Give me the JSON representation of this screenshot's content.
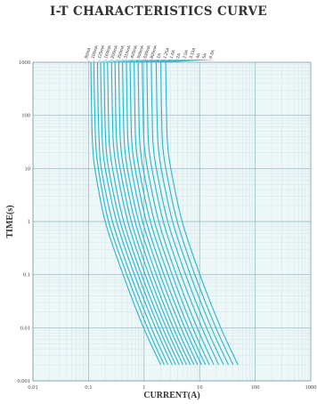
{
  "title": "I-T CHARACTERISTICS CURVE",
  "colors": {
    "curve": "#27b6c8",
    "plot_background": "#eef7f8",
    "major_grid": "#8fb3bb",
    "minor_grid": "#c6dde2",
    "frame": "#7b9aa3",
    "text": "#333333"
  },
  "chart_data": {
    "type": "line",
    "title": "I-T CHARACTERISTICS CURVE",
    "xlabel": "CURRENT(A)",
    "ylabel": "TIME(s)",
    "xscale": "log",
    "yscale": "log",
    "xlim": [
      0.01,
      1000
    ],
    "ylim": [
      0.001,
      1000
    ],
    "grid": true,
    "x_tick_labels": [
      "0.01",
      "0.1",
      "1",
      "10",
      "100",
      "1000"
    ],
    "y_tick_labels": [
      "0.001",
      "0.01",
      "0.1",
      "1",
      "10",
      "100",
      "1000"
    ],
    "series": [
      {
        "name": "80mA",
        "points": [
          [
            0.11,
            1000
          ],
          [
            0.112,
            300
          ],
          [
            0.114,
            100
          ],
          [
            0.118,
            30
          ],
          [
            0.13,
            10
          ],
          [
            0.2,
            1
          ],
          [
            0.42,
            0.1
          ],
          [
            0.98,
            0.01
          ],
          [
            2.0,
            0.002
          ]
        ]
      },
      {
        "name": "100mA",
        "points": [
          [
            0.125,
            1000
          ],
          [
            0.127,
            300
          ],
          [
            0.13,
            100
          ],
          [
            0.135,
            30
          ],
          [
            0.15,
            10
          ],
          [
            0.23,
            1
          ],
          [
            0.49,
            0.1
          ],
          [
            1.15,
            0.01
          ],
          [
            2.3,
            0.002
          ]
        ]
      },
      {
        "name": "125mA",
        "points": [
          [
            0.145,
            1000
          ],
          [
            0.147,
            300
          ],
          [
            0.15,
            100
          ],
          [
            0.156,
            30
          ],
          [
            0.17,
            10
          ],
          [
            0.27,
            1
          ],
          [
            0.57,
            0.1
          ],
          [
            1.35,
            0.01
          ],
          [
            2.7,
            0.002
          ]
        ]
      },
      {
        "name": "160mA",
        "points": [
          [
            0.165,
            1000
          ],
          [
            0.168,
            300
          ],
          [
            0.172,
            100
          ],
          [
            0.178,
            30
          ],
          [
            0.2,
            10
          ],
          [
            0.32,
            1
          ],
          [
            0.67,
            0.1
          ],
          [
            1.6,
            0.01
          ],
          [
            3.2,
            0.002
          ]
        ]
      },
      {
        "name": "200mA",
        "points": [
          [
            0.19,
            1000
          ],
          [
            0.193,
            300
          ],
          [
            0.197,
            100
          ],
          [
            0.205,
            30
          ],
          [
            0.23,
            10
          ],
          [
            0.37,
            1
          ],
          [
            0.78,
            0.1
          ],
          [
            1.85,
            0.01
          ],
          [
            3.7,
            0.002
          ]
        ]
      },
      {
        "name": "250mA",
        "points": [
          [
            0.22,
            1000
          ],
          [
            0.224,
            300
          ],
          [
            0.228,
            100
          ],
          [
            0.237,
            30
          ],
          [
            0.27,
            10
          ],
          [
            0.43,
            1
          ],
          [
            0.9,
            0.1
          ],
          [
            2.15,
            0.01
          ],
          [
            4.3,
            0.002
          ]
        ]
      },
      {
        "name": "315mA",
        "points": [
          [
            0.26,
            1000
          ],
          [
            0.264,
            300
          ],
          [
            0.27,
            100
          ],
          [
            0.28,
            30
          ],
          [
            0.32,
            10
          ],
          [
            0.51,
            1
          ],
          [
            1.05,
            0.1
          ],
          [
            2.5,
            0.01
          ],
          [
            5.0,
            0.002
          ]
        ]
      },
      {
        "name": "400mA",
        "points": [
          [
            0.3,
            1000
          ],
          [
            0.305,
            300
          ],
          [
            0.31,
            100
          ],
          [
            0.323,
            30
          ],
          [
            0.37,
            10
          ],
          [
            0.59,
            1
          ],
          [
            1.22,
            0.1
          ],
          [
            2.9,
            0.01
          ],
          [
            5.8,
            0.002
          ]
        ]
      },
      {
        "name": "500mA",
        "points": [
          [
            0.35,
            1000
          ],
          [
            0.356,
            300
          ],
          [
            0.363,
            100
          ],
          [
            0.377,
            30
          ],
          [
            0.43,
            10
          ],
          [
            0.69,
            1
          ],
          [
            1.42,
            0.1
          ],
          [
            3.35,
            0.01
          ],
          [
            6.8,
            0.002
          ]
        ]
      },
      {
        "name": "630mA",
        "points": [
          [
            0.41,
            1000
          ],
          [
            0.417,
            300
          ],
          [
            0.425,
            100
          ],
          [
            0.442,
            30
          ],
          [
            0.5,
            10
          ],
          [
            0.8,
            1
          ],
          [
            1.66,
            0.1
          ],
          [
            3.9,
            0.01
          ],
          [
            7.9,
            0.002
          ]
        ]
      },
      {
        "name": "800mA",
        "points": [
          [
            0.48,
            1000
          ],
          [
            0.488,
            300
          ],
          [
            0.497,
            100
          ],
          [
            0.517,
            30
          ],
          [
            0.59,
            10
          ],
          [
            0.94,
            1
          ],
          [
            1.95,
            0.1
          ],
          [
            4.6,
            0.01
          ],
          [
            9.2,
            0.002
          ]
        ]
      },
      {
        "name": "1A",
        "points": [
          [
            0.56,
            1000
          ],
          [
            0.57,
            300
          ],
          [
            0.58,
            100
          ],
          [
            0.603,
            30
          ],
          [
            0.69,
            10
          ],
          [
            1.1,
            1
          ],
          [
            2.28,
            0.1
          ],
          [
            5.4,
            0.01
          ],
          [
            10.8,
            0.002
          ]
        ]
      },
      {
        "name": "1.25A",
        "points": [
          [
            0.66,
            1000
          ],
          [
            0.672,
            300
          ],
          [
            0.684,
            100
          ],
          [
            0.71,
            30
          ],
          [
            0.81,
            10
          ],
          [
            1.3,
            1
          ],
          [
            2.7,
            0.1
          ],
          [
            6.3,
            0.01
          ],
          [
            12.7,
            0.002
          ]
        ]
      },
      {
        "name": "1.6A",
        "points": [
          [
            0.78,
            1000
          ],
          [
            0.794,
            300
          ],
          [
            0.808,
            100
          ],
          [
            0.84,
            30
          ],
          [
            0.96,
            10
          ],
          [
            1.54,
            1
          ],
          [
            3.2,
            0.1
          ],
          [
            7.5,
            0.01
          ],
          [
            15.0,
            0.002
          ]
        ]
      },
      {
        "name": "2A",
        "points": [
          [
            0.93,
            1000
          ],
          [
            0.946,
            300
          ],
          [
            0.963,
            100
          ],
          [
            1.0,
            30
          ],
          [
            1.15,
            10
          ],
          [
            1.84,
            1
          ],
          [
            3.8,
            0.1
          ],
          [
            9.0,
            0.01
          ],
          [
            18.0,
            0.002
          ]
        ]
      },
      {
        "name": "2.5A",
        "points": [
          [
            1.12,
            1000
          ],
          [
            1.14,
            300
          ],
          [
            1.16,
            100
          ],
          [
            1.2,
            30
          ],
          [
            1.38,
            10
          ],
          [
            2.22,
            1
          ],
          [
            4.6,
            0.1
          ],
          [
            11.0,
            0.01
          ],
          [
            22.0,
            0.002
          ]
        ]
      },
      {
        "name": "3.15A",
        "points": [
          [
            1.35,
            1000
          ],
          [
            1.37,
            300
          ],
          [
            1.4,
            100
          ],
          [
            1.45,
            30
          ],
          [
            1.66,
            10
          ],
          [
            2.67,
            1
          ],
          [
            5.6,
            0.1
          ],
          [
            13.3,
            0.01
          ],
          [
            27.0,
            0.002
          ]
        ]
      },
      {
        "name": "4A",
        "points": [
          [
            1.65,
            1000
          ],
          [
            1.68,
            300
          ],
          [
            1.71,
            100
          ],
          [
            1.78,
            30
          ],
          [
            2.03,
            10
          ],
          [
            3.26,
            1
          ],
          [
            6.8,
            0.1
          ],
          [
            16.2,
            0.01
          ],
          [
            33.0,
            0.002
          ]
        ]
      },
      {
        "name": "5A",
        "points": [
          [
            2.0,
            1000
          ],
          [
            2.03,
            300
          ],
          [
            2.07,
            100
          ],
          [
            2.15,
            30
          ],
          [
            2.46,
            10
          ],
          [
            3.95,
            1
          ],
          [
            8.2,
            0.1
          ],
          [
            19.6,
            0.01
          ],
          [
            40.0,
            0.002
          ]
        ]
      },
      {
        "name": "6.3A",
        "points": [
          [
            2.45,
            1000
          ],
          [
            2.49,
            300
          ],
          [
            2.54,
            100
          ],
          [
            2.64,
            30
          ],
          [
            3.02,
            10
          ],
          [
            4.85,
            1
          ],
          [
            10.1,
            0.1
          ],
          [
            24.0,
            0.01
          ],
          [
            49.0,
            0.002
          ]
        ]
      }
    ]
  }
}
